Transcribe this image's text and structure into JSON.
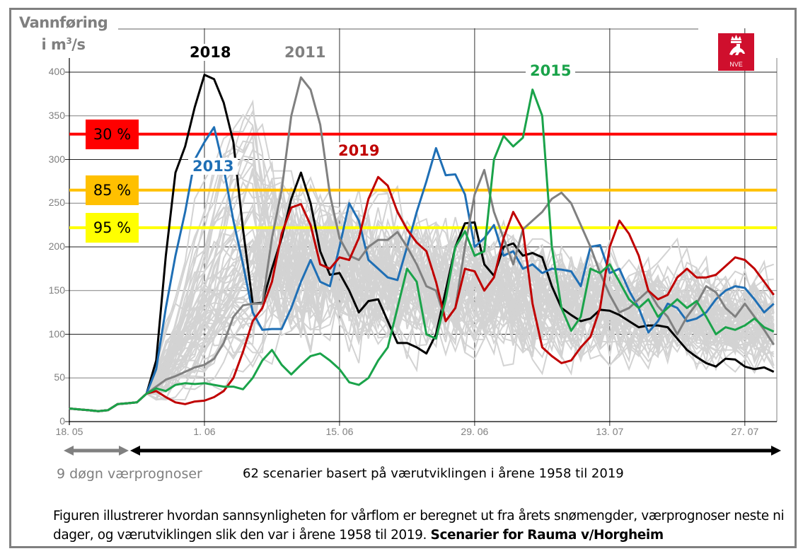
{
  "chart_data": {
    "type": "line",
    "title": "",
    "ylabel_line1": "Vannføring",
    "ylabel_line2_prefix": "i m",
    "ylabel_line2_sup": "3",
    "ylabel_line2_suffix": "/s",
    "ylim": [
      0,
      400
    ],
    "yticks": [
      "0",
      "50",
      "100",
      "150",
      "200",
      "250",
      "300",
      "350",
      "400"
    ],
    "ytick_values": [
      0,
      50,
      100,
      150,
      200,
      250,
      300,
      350,
      400
    ],
    "x_start_label": "18.05",
    "x_day_range": [
      0,
      73
    ],
    "xticks": [
      {
        "day": 0,
        "label": "18. 05"
      },
      {
        "day": 14,
        "label": "1. 06"
      },
      {
        "day": 28,
        "label": "15. 06"
      },
      {
        "day": 42,
        "label": "29. 06"
      },
      {
        "day": 56,
        "label": "13. 07"
      },
      {
        "day": 70,
        "label": "27. 07"
      }
    ],
    "grid": true,
    "thresholds": [
      {
        "label": "30 %",
        "value": 329,
        "color": "#ff0000",
        "box_color": "#ff0000"
      },
      {
        "label": "85 %",
        "value": 265,
        "color": "#ffc000",
        "box_color": "#ffc000"
      },
      {
        "label": "95 %",
        "value": 222,
        "color": "#ffff00",
        "box_color": "#ffff00"
      }
    ],
    "highlight_series": [
      {
        "name": "2018",
        "color": "#000000",
        "values": [
          15,
          14,
          13,
          12,
          13,
          20,
          21,
          22,
          32,
          70,
          190,
          285,
          315,
          360,
          397,
          392,
          365,
          320,
          220,
          135,
          136,
          175,
          210,
          255,
          285,
          250,
          195,
          168,
          170,
          150,
          125,
          138,
          140,
          115,
          90,
          90,
          85,
          78,
          100,
          150,
          200,
          227,
          228,
          180,
          167,
          200,
          204,
          190,
          193,
          188,
          155,
          130,
          122,
          115,
          118,
          128,
          127,
          122,
          115,
          108,
          110,
          110,
          108,
          95,
          82,
          74,
          67,
          63,
          72,
          71,
          63,
          60,
          62,
          57
        ]
      },
      {
        "name": "2013",
        "color": "#1f6fb5",
        "values": [
          15,
          14,
          13,
          12,
          13,
          20,
          21,
          22,
          32,
          60,
          130,
          190,
          240,
          300,
          320,
          337,
          290,
          230,
          180,
          125,
          105,
          106,
          106,
          130,
          160,
          185,
          160,
          155,
          200,
          250,
          230,
          185,
          175,
          165,
          162,
          200,
          240,
          275,
          313,
          282,
          283,
          260,
          200,
          210,
          225,
          190,
          195,
          175,
          180,
          170,
          175,
          174,
          172,
          155,
          200,
          202,
          170,
          175,
          150,
          130,
          102,
          115,
          135,
          130,
          115,
          118,
          125,
          140,
          150,
          155,
          153,
          140,
          125,
          135
        ]
      },
      {
        "name": "2011",
        "color": "#808080",
        "values": [
          15,
          14,
          13,
          12,
          13,
          20,
          21,
          22,
          32,
          40,
          48,
          52,
          57,
          62,
          65,
          72,
          90,
          120,
          133,
          135,
          135,
          210,
          265,
          350,
          394,
          380,
          340,
          260,
          210,
          190,
          185,
          200,
          208,
          208,
          217,
          200,
          180,
          155,
          150,
          115,
          130,
          200,
          260,
          288,
          240,
          210,
          180,
          220,
          230,
          240,
          255,
          262,
          250,
          225,
          200,
          170,
          145,
          125,
          130,
          140,
          150,
          132,
          120,
          100,
          120,
          135,
          155,
          148,
          130,
          120,
          135,
          120,
          105,
          88
        ]
      },
      {
        "name": "2019",
        "color": "#c00000",
        "values": [
          15,
          14,
          13,
          12,
          13,
          20,
          21,
          22,
          32,
          35,
          28,
          22,
          20,
          23,
          24,
          28,
          35,
          50,
          80,
          115,
          130,
          160,
          215,
          245,
          249,
          225,
          180,
          175,
          188,
          185,
          210,
          255,
          280,
          270,
          240,
          220,
          205,
          195,
          160,
          115,
          130,
          175,
          172,
          150,
          165,
          210,
          240,
          220,
          135,
          85,
          75,
          67,
          70,
          85,
          97,
          130,
          200,
          230,
          215,
          190,
          150,
          140,
          145,
          165,
          175,
          165,
          165,
          168,
          178,
          188,
          185,
          175,
          160,
          145
        ]
      },
      {
        "name": "2015",
        "color": "#1aa34a",
        "values": [
          15,
          14,
          13,
          12,
          13,
          20,
          21,
          22,
          32,
          38,
          35,
          42,
          44,
          43,
          44,
          42,
          40,
          40,
          37,
          50,
          70,
          82,
          65,
          54,
          65,
          75,
          78,
          70,
          60,
          45,
          42,
          50,
          70,
          85,
          130,
          175,
          160,
          100,
          95,
          140,
          200,
          218,
          190,
          195,
          300,
          327,
          315,
          325,
          380,
          350,
          200,
          130,
          104,
          120,
          175,
          170,
          180,
          160,
          140,
          130,
          140,
          120,
          130,
          140,
          130,
          138,
          120,
          100,
          108,
          105,
          110,
          118,
          108,
          103
        ]
      }
    ],
    "background_series_count": 62,
    "series_labels": [
      {
        "name": "2018",
        "color": "#000000"
      },
      {
        "name": "2011",
        "color": "#808080"
      },
      {
        "name": "2015",
        "color": "#1aa34a"
      },
      {
        "name": "2013",
        "color": "#1f6fb5"
      },
      {
        "name": "2019",
        "color": "#c00000"
      }
    ]
  },
  "logo": {
    "text": "NVE",
    "color": "#cf0f2d"
  },
  "arrows": {
    "forecast_label": "9 døgn værprognoser",
    "scenarios_label": "62 scenarier basert på værutviklingen i årene 1958 til 2019"
  },
  "footer": {
    "text_regular": "Figuren illustrerer hvordan sannsynligheten for vårflom er beregnet ut fra årets snømengder, værprognoser neste ni dager, og værutviklingen slik den var i årene 1958 til 2019.",
    "text_bold": "Scenarier for Rauma v/Horgheim"
  }
}
